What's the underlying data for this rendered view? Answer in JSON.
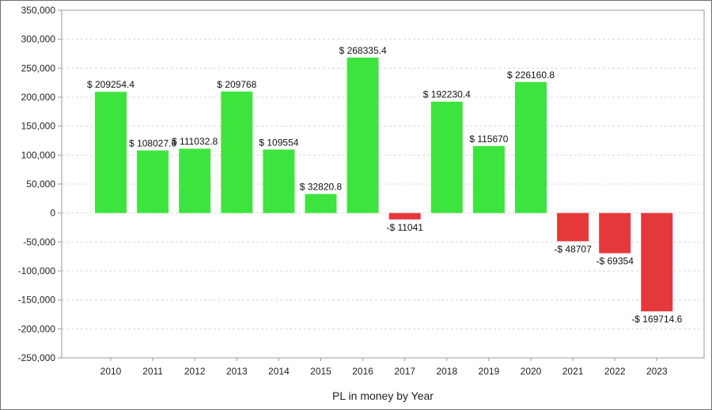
{
  "chart_data": {
    "type": "bar",
    "xlabel": "PL in money by Year",
    "ylabel": "",
    "ylim": [
      -250000,
      350000
    ],
    "yticks": [
      350000,
      300000,
      250000,
      200000,
      150000,
      100000,
      50000,
      0,
      -50000,
      -100000,
      -150000,
      -200000,
      -250000
    ],
    "ytick_labels": [
      "350,000",
      "300,000",
      "250,000",
      "200,000",
      "150,000",
      "100,000",
      "50,000",
      "0",
      "-50,000",
      "-100,000",
      "-150,000",
      "-200,000",
      "-250,000"
    ],
    "grid": true,
    "categories": [
      "2010",
      "2011",
      "2012",
      "2013",
      "2014",
      "2015",
      "2016",
      "2017",
      "2018",
      "2019",
      "2020",
      "2021",
      "2022",
      "2023"
    ],
    "values": [
      209254.4,
      108027.6,
      111032.8,
      209768,
      109554,
      32820.8,
      268335.4,
      -11041,
      192230.4,
      115670,
      226160.8,
      -48707,
      -69354,
      -169714.6
    ],
    "data_labels": [
      "$ 209254.4",
      "$ 108027.6",
      "$ 111032.8",
      "$ 209768",
      "$ 109554",
      "$ 32820.8",
      "$ 268335.4",
      "-$ 11041",
      "$ 192230.4",
      "$ 115670",
      "$ 226160.8",
      "-$ 48707",
      "-$ 69354",
      "-$ 169714.6"
    ],
    "colors": {
      "positive": "#3ee43e",
      "negative": "#e5383b",
      "grid": "#d8d8d8",
      "axis": "#9a9a9a"
    }
  }
}
